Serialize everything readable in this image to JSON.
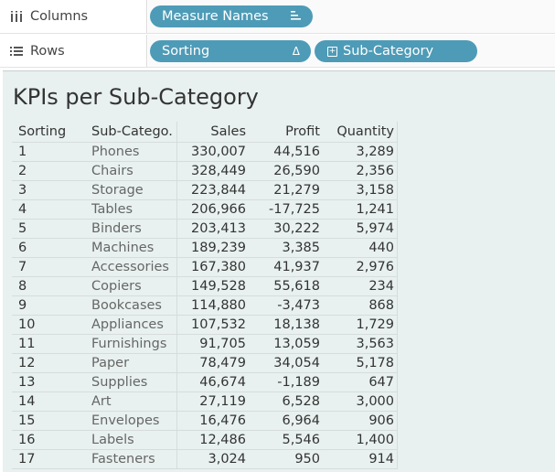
{
  "shelves": {
    "columns": {
      "label": "Columns",
      "icon": "columns-icon",
      "pills": [
        {
          "label": "Measure Names",
          "icon": "sort-icon"
        }
      ]
    },
    "rows": {
      "label": "Rows",
      "icon": "rows-icon",
      "pills": [
        {
          "label": "Sorting",
          "icon": "delta-icon",
          "icon_glyph": "Δ"
        },
        {
          "label": "Sub-Category",
          "icon": "expand-plus-icon",
          "icon_glyph": "+"
        }
      ]
    }
  },
  "view": {
    "title": "KPIs per Sub-Category",
    "headers": [
      "Sorting",
      "Sub-Catego..",
      "Sales",
      "Profit",
      "Quantity"
    ],
    "rows": [
      [
        "1",
        "Phones",
        "330,007",
        "44,516",
        "3,289"
      ],
      [
        "2",
        "Chairs",
        "328,449",
        "26,590",
        "2,356"
      ],
      [
        "3",
        "Storage",
        "223,844",
        "21,279",
        "3,158"
      ],
      [
        "4",
        "Tables",
        "206,966",
        "-17,725",
        "1,241"
      ],
      [
        "5",
        "Binders",
        "203,413",
        "30,222",
        "5,974"
      ],
      [
        "6",
        "Machines",
        "189,239",
        "3,385",
        "440"
      ],
      [
        "7",
        "Accessories",
        "167,380",
        "41,937",
        "2,976"
      ],
      [
        "8",
        "Copiers",
        "149,528",
        "55,618",
        "234"
      ],
      [
        "9",
        "Bookcases",
        "114,880",
        "-3,473",
        "868"
      ],
      [
        "10",
        "Appliances",
        "107,532",
        "18,138",
        "1,729"
      ],
      [
        "11",
        "Furnishings",
        "91,705",
        "13,059",
        "3,563"
      ],
      [
        "12",
        "Paper",
        "78,479",
        "34,054",
        "5,178"
      ],
      [
        "13",
        "Supplies",
        "46,674",
        "-1,189",
        "647"
      ],
      [
        "14",
        "Art",
        "27,119",
        "6,528",
        "3,000"
      ],
      [
        "15",
        "Envelopes",
        "16,476",
        "6,964",
        "906"
      ],
      [
        "16",
        "Labels",
        "12,486",
        "5,546",
        "1,400"
      ],
      [
        "17",
        "Fasteners",
        "3,024",
        "950",
        "914"
      ]
    ]
  },
  "colors": {
    "pill": "#4e9bb7",
    "canvas_bg": "#e8f1f0"
  }
}
